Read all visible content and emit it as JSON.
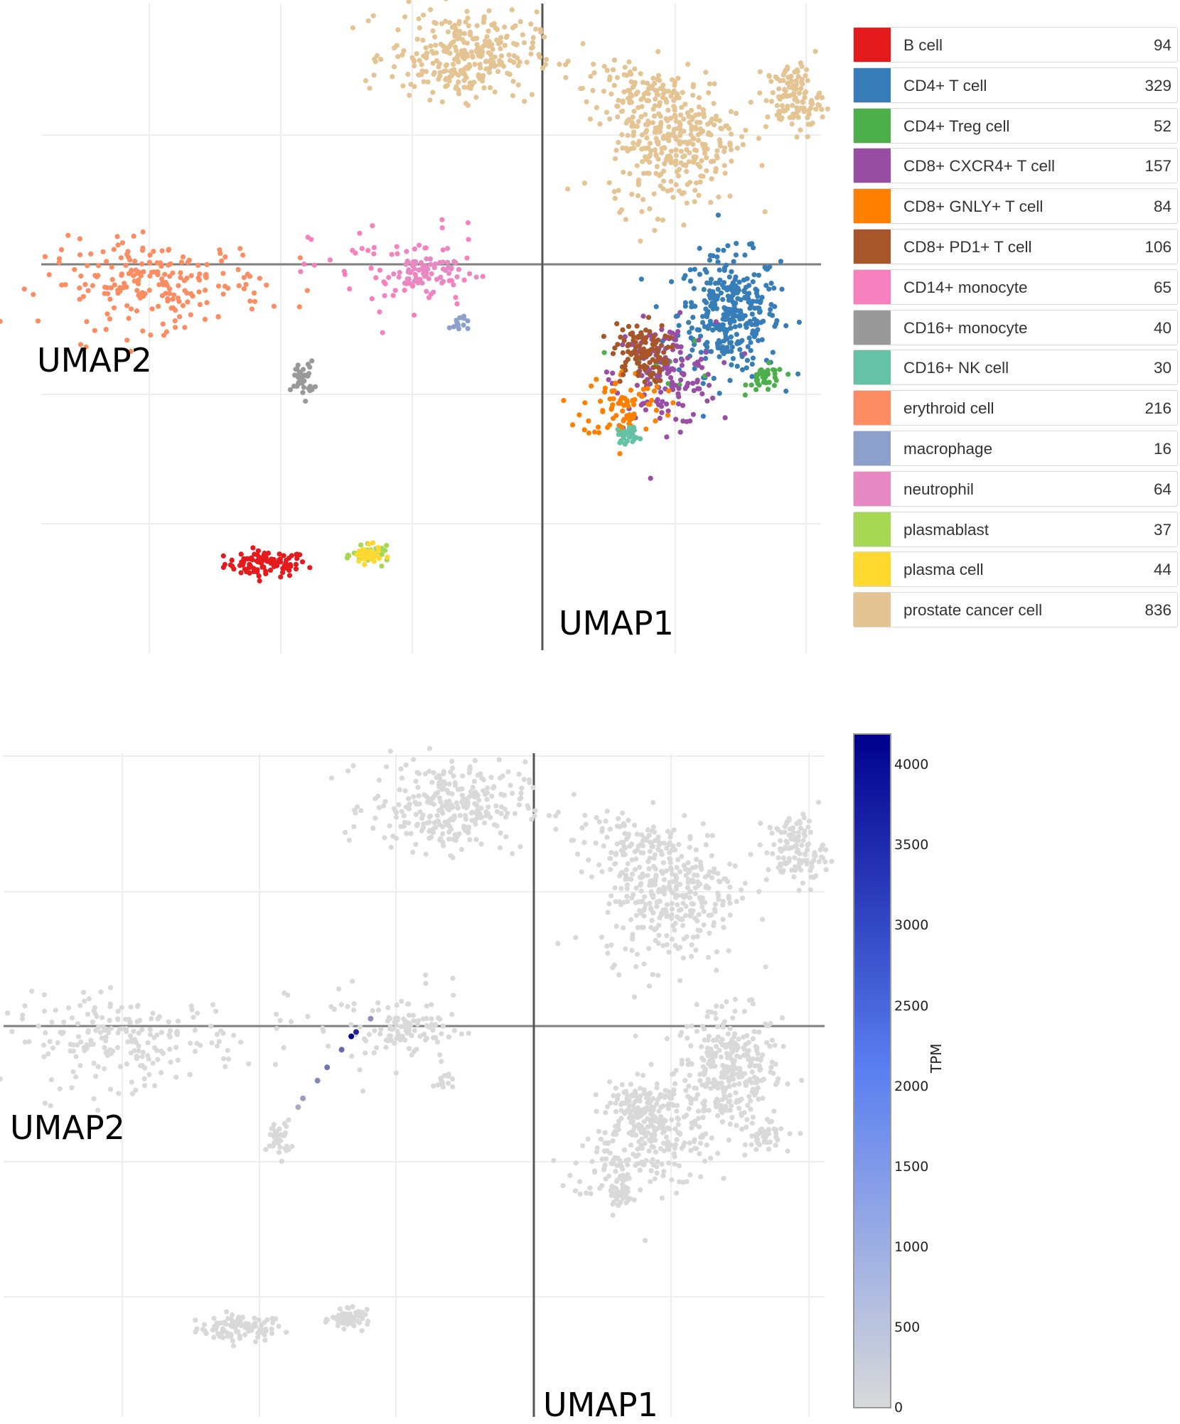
{
  "chart_data": [
    {
      "type": "scatter",
      "title": "",
      "xlabel": "UMAP1",
      "ylabel": "UMAP2",
      "grid": true,
      "legend": "right",
      "xlim": [
        -11,
        6
      ],
      "ylim": [
        -9,
        6
      ],
      "series": [
        {
          "name": "B cell",
          "color": "#e41a1c",
          "count": "94",
          "clusters": [
            {
              "cx": -6.1,
              "cy": -7.0,
              "sx": 0.45,
              "sy": 0.15,
              "n": 94
            }
          ]
        },
        {
          "name": "CD4+ T cell",
          "color": "#377eb8",
          "count": "329",
          "clusters": [
            {
              "cx": 4.0,
              "cy": -1.2,
              "sx": 0.55,
              "sy": 0.7,
              "n": 329
            }
          ]
        },
        {
          "name": "CD4+ Treg cell",
          "color": "#4daf4a",
          "count": "52",
          "clusters": [
            {
              "cx": 4.8,
              "cy": -2.7,
              "sx": 0.2,
              "sy": 0.15,
              "n": 40
            },
            {
              "cx": 2.7,
              "cy": -2.4,
              "sx": 0.5,
              "sy": 0.3,
              "n": 12
            }
          ]
        },
        {
          "name": "CD8+ CXCR4+ T cell",
          "color": "#984ea3",
          "count": "157",
          "clusters": [
            {
              "cx": 2.6,
              "cy": -2.6,
              "sx": 0.55,
              "sy": 0.6,
              "n": 157
            }
          ]
        },
        {
          "name": "CD8+ GNLY+ T cell",
          "color": "#ff7f00",
          "count": "84",
          "clusters": [
            {
              "cx": 1.7,
              "cy": -3.3,
              "sx": 0.45,
              "sy": 0.4,
              "n": 84
            }
          ]
        },
        {
          "name": "CD8+ PD1+ T cell",
          "color": "#a65628",
          "count": "106",
          "clusters": [
            {
              "cx": 2.05,
              "cy": -2.1,
              "sx": 0.3,
              "sy": 0.35,
              "n": 106
            }
          ]
        },
        {
          "name": "CD14+ monocyte",
          "color": "#f781bf",
          "count": "65",
          "clusters": [
            {
              "cx": -3.1,
              "cy": -0.3,
              "sx": 1.0,
              "sy": 0.6,
              "n": 65
            }
          ]
        },
        {
          "name": "CD16+ monocyte",
          "color": "#999999",
          "count": "40",
          "clusters": [
            {
              "cx": -5.3,
              "cy": -2.7,
              "sx": 0.12,
              "sy": 0.2,
              "n": 40
            }
          ]
        },
        {
          "name": "CD16+ NK cell",
          "color": "#66c2a5",
          "count": "30",
          "clusters": [
            {
              "cx": 1.8,
              "cy": -4.0,
              "sx": 0.12,
              "sy": 0.1,
              "n": 30
            }
          ]
        },
        {
          "name": "erythroid cell",
          "color": "#fc8d62",
          "count": "216",
          "clusters": [
            {
              "cx": -8.5,
              "cy": -0.5,
              "sx": 1.2,
              "sy": 0.5,
              "n": 216
            }
          ]
        },
        {
          "name": "macrophage",
          "color": "#8da0cb",
          "count": "16",
          "clusters": [
            {
              "cx": -1.9,
              "cy": -1.4,
              "sx": 0.1,
              "sy": 0.1,
              "n": 16
            }
          ]
        },
        {
          "name": "neutrophil",
          "color": "#e78ac3",
          "count": "64",
          "clusters": [
            {
              "cx": -2.6,
              "cy": -0.2,
              "sx": 0.4,
              "sy": 0.2,
              "n": 64
            }
          ]
        },
        {
          "name": "plasmablast",
          "color": "#a6d854",
          "count": "37",
          "clusters": [
            {
              "cx": -3.8,
              "cy": -6.8,
              "sx": 0.2,
              "sy": 0.1,
              "n": 37
            }
          ]
        },
        {
          "name": "plasma cell",
          "color": "#ffd92f",
          "count": "44",
          "clusters": [
            {
              "cx": -3.9,
              "cy": -6.8,
              "sx": 0.15,
              "sy": 0.1,
              "n": 44
            }
          ]
        },
        {
          "name": "prostate cancer cell",
          "color": "#e5c494",
          "count": "836",
          "clusters": [
            {
              "cx": -1.8,
              "cy": 4.8,
              "sx": 0.8,
              "sy": 0.5,
              "n": 300
            },
            {
              "cx": 2.8,
              "cy": 2.9,
              "sx": 0.7,
              "sy": 0.8,
              "n": 350
            },
            {
              "cx": 5.4,
              "cy": 3.8,
              "sx": 0.3,
              "sy": 0.4,
              "n": 120
            },
            {
              "cx": 1.8,
              "cy": 4.0,
              "sx": 0.5,
              "sy": 0.3,
              "n": 66
            }
          ]
        }
      ]
    },
    {
      "type": "scatter",
      "title": "",
      "xlabel": "UMAP1",
      "ylabel": "UMAP2",
      "grid": true,
      "legend": "right",
      "colorbar": {
        "title": "TPM",
        "min": 0,
        "max": 4200,
        "ticks": [
          "4000",
          "3500",
          "3000",
          "2500",
          "2000",
          "1500",
          "1000",
          "500",
          "0"
        ],
        "low_color": "#d9d9d9",
        "high_color": "#00008b"
      },
      "xlim": [
        -11,
        6
      ],
      "ylim": [
        -9,
        6
      ],
      "background_color": "#d9d9d9",
      "high_expression": [
        {
          "x": -3.8,
          "y": -0.4,
          "value": 4200
        },
        {
          "x": -3.7,
          "y": -0.3,
          "value": 3500
        },
        {
          "x": -4.0,
          "y": -0.7,
          "value": 2200
        },
        {
          "x": -4.3,
          "y": -1.1,
          "value": 2000
        },
        {
          "x": -4.5,
          "y": -1.4,
          "value": 1600
        },
        {
          "x": -4.8,
          "y": -1.8,
          "value": 1200
        },
        {
          "x": -4.9,
          "y": -2.0,
          "value": 900
        },
        {
          "x": -3.4,
          "y": 0.0,
          "value": 1500
        }
      ]
    }
  ]
}
